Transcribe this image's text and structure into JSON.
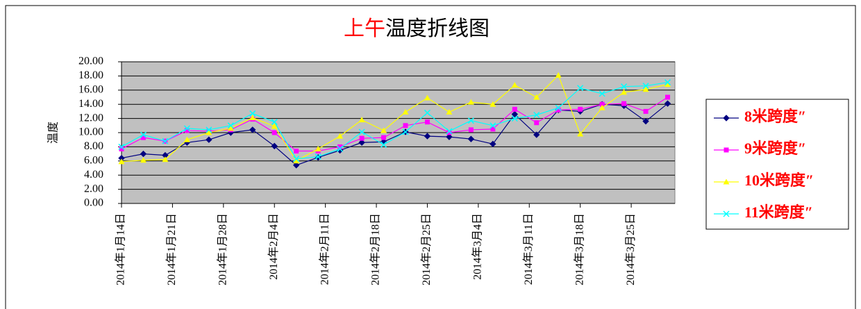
{
  "chart_data": {
    "type": "line",
    "title_parts": [
      "上午",
      "温度折线图"
    ],
    "title_colors": [
      "#ff0000",
      "#000000"
    ],
    "y_label": "温度",
    "x": [
      "2014-01-14",
      "2014-01-17",
      "2014-01-20",
      "2014-01-23",
      "2014-01-26",
      "2014-01-29",
      "2014-02-01",
      "2014-02-04",
      "2014-02-07",
      "2014-02-10",
      "2014-02-13",
      "2014-02-16",
      "2014-02-19",
      "2014-02-22",
      "2014-02-25",
      "2014-02-28",
      "2014-03-03",
      "2014-03-06",
      "2014-03-09",
      "2014-03-12",
      "2014-03-15",
      "2014-03-18",
      "2014-03-21",
      "2014-03-24",
      "2014-03-27",
      "2014-03-30"
    ],
    "xlim": [
      "2014-01-14",
      "2014-03-31"
    ],
    "xticks": [
      {
        "value": "2014-01-14",
        "label": "2014年1月14日"
      },
      {
        "value": "2014-01-21",
        "label": "2014年1月21日"
      },
      {
        "value": "2014-01-28",
        "label": "2014年1月28日"
      },
      {
        "value": "2014-02-04",
        "label": "2014年2月4日"
      },
      {
        "value": "2014-02-11",
        "label": "2014年2月11日"
      },
      {
        "value": "2014-02-18",
        "label": "2014年2月18日"
      },
      {
        "value": "2014-02-25",
        "label": "2014年2月25日"
      },
      {
        "value": "2014-03-04",
        "label": "2014年3月4日"
      },
      {
        "value": "2014-03-11",
        "label": "2014年3月11日"
      },
      {
        "value": "2014-03-18",
        "label": "2014年3月18日"
      },
      {
        "value": "2014-03-25",
        "label": "2014年3月25日"
      }
    ],
    "ylim": [
      0,
      20
    ],
    "yticks": [
      {
        "value": 0,
        "label": "0.00"
      },
      {
        "value": 2,
        "label": "2.00"
      },
      {
        "value": 4,
        "label": "4.00"
      },
      {
        "value": 6,
        "label": "6.00"
      },
      {
        "value": 8,
        "label": "8.00"
      },
      {
        "value": 10,
        "label": "10.00"
      },
      {
        "value": 12,
        "label": "12.00"
      },
      {
        "value": 14,
        "label": "14.00"
      },
      {
        "value": 16,
        "label": "16.00"
      },
      {
        "value": 18,
        "label": "18.00"
      },
      {
        "value": 20,
        "label": "20.00"
      }
    ],
    "grid": true,
    "plot_background": "#c0c0c0",
    "legend": "right",
    "legend_text_color": "#ff0000",
    "series": [
      {
        "name": "8米跨度″",
        "color": "#000080",
        "marker": "diamond",
        "values": [
          6.4,
          7.0,
          6.8,
          8.6,
          9.0,
          10.0,
          10.4,
          8.1,
          5.4,
          6.5,
          7.5,
          8.6,
          8.7,
          10.1,
          9.5,
          9.4,
          9.1,
          8.4,
          12.6,
          9.7,
          13.2,
          13.0,
          14.0,
          13.8,
          11.6,
          14.1
        ]
      },
      {
        "name": "9米跨度″",
        "color": "#ff00ff",
        "marker": "square",
        "values": [
          7.7,
          9.3,
          8.8,
          10.3,
          10.2,
          10.4,
          11.9,
          10.0,
          7.4,
          7.4,
          8.0,
          9.2,
          9.3,
          11.0,
          11.5,
          10.0,
          10.4,
          10.5,
          13.3,
          11.4,
          13.2,
          13.3,
          14.0,
          14.1,
          13.0,
          15.0
        ]
      },
      {
        "name": "10米跨度″",
        "color": "#ffff00",
        "marker": "triangle",
        "values": [
          5.9,
          6.1,
          6.2,
          9.0,
          10.0,
          10.6,
          12.1,
          10.9,
          6.0,
          7.7,
          9.5,
          11.8,
          10.3,
          12.9,
          14.9,
          12.9,
          14.3,
          14.0,
          16.7,
          15.0,
          18.1,
          9.8,
          13.5,
          15.7,
          16.1,
          16.8
        ]
      },
      {
        "name": "11米跨度″",
        "color": "#00ffff",
        "marker": "x",
        "values": [
          8.0,
          9.7,
          8.8,
          10.6,
          10.4,
          11.0,
          12.7,
          11.5,
          6.3,
          6.6,
          7.7,
          10.1,
          8.3,
          10.1,
          12.8,
          10.2,
          11.7,
          11.0,
          12.0,
          12.5,
          13.5,
          16.3,
          15.5,
          16.5,
          16.6,
          17.1
        ]
      }
    ]
  }
}
